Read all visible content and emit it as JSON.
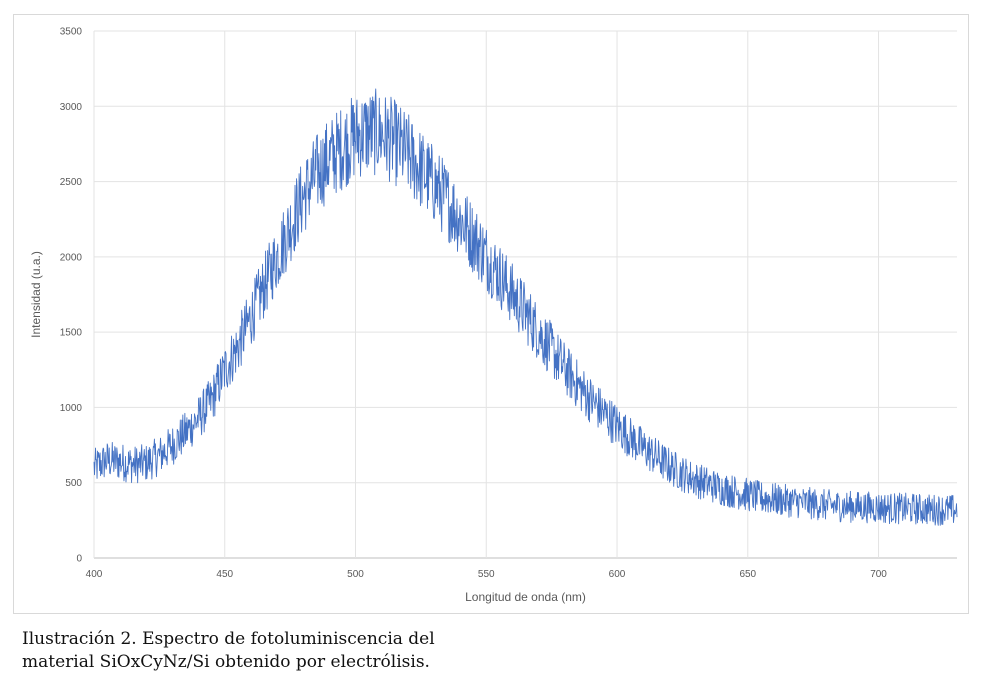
{
  "caption": {
    "line1": "Ilustración 2. Espectro de fotoluminiscencia del",
    "line2": "material SiOxCyNz/Si obtenido por electrólisis."
  },
  "chart_data": {
    "type": "line",
    "title": "",
    "xlabel": "Longitud de onda (nm)",
    "ylabel": "Intensidad (u.a.)",
    "xlim": [
      400,
      730
    ],
    "ylim": [
      0,
      3500
    ],
    "xticks": [
      400,
      450,
      500,
      550,
      600,
      650,
      700
    ],
    "yticks": [
      0,
      500,
      1000,
      1500,
      2000,
      2500,
      3000,
      3500
    ],
    "grid": true,
    "legend": "none",
    "color": "#4472c4",
    "series": [
      {
        "x": [
          400,
          405,
          410,
          415,
          420,
          425,
          430,
          435,
          440,
          445,
          450,
          455,
          460,
          465,
          470,
          475,
          480,
          485,
          490,
          495,
          500,
          505,
          510,
          515,
          520,
          525,
          530,
          535,
          540,
          545,
          550,
          555,
          560,
          565,
          570,
          575,
          580,
          585,
          590,
          595,
          600,
          605,
          610,
          615,
          620,
          625,
          630,
          635,
          640,
          645,
          650,
          655,
          660,
          665,
          670,
          675,
          680,
          685,
          690,
          695,
          700,
          705,
          710,
          715,
          720,
          725,
          730
        ],
        "values": [
          600,
          650,
          640,
          620,
          630,
          680,
          750,
          830,
          930,
          1050,
          1250,
          1400,
          1600,
          1800,
          2000,
          2200,
          2400,
          2550,
          2650,
          2730,
          2800,
          2830,
          2820,
          2760,
          2680,
          2580,
          2480,
          2370,
          2250,
          2130,
          2000,
          1880,
          1750,
          1630,
          1500,
          1380,
          1260,
          1150,
          1050,
          960,
          880,
          800,
          730,
          670,
          610,
          560,
          520,
          490,
          460,
          440,
          420,
          400,
          390,
          380,
          370,
          360,
          350,
          345,
          340,
          338,
          335,
          330,
          328,
          325,
          322,
          320,
          318
        ]
      }
    ]
  }
}
